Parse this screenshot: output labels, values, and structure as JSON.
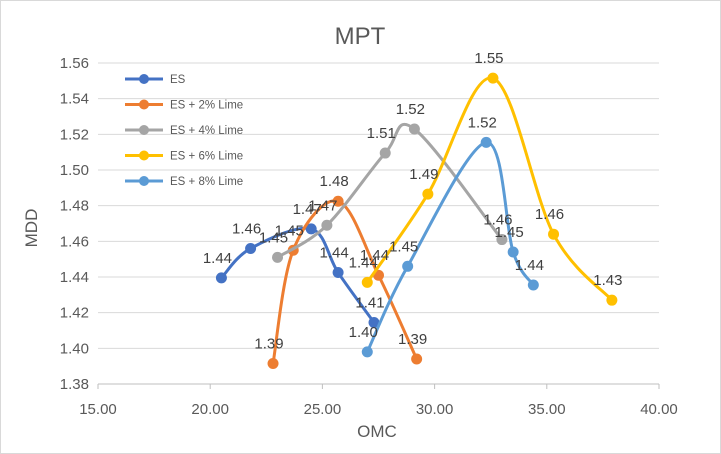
{
  "chart_data": {
    "type": "scatter",
    "title": "MPT",
    "xlabel": "OMC",
    "ylabel": "MDD",
    "xlim": [
      15.0,
      40.0
    ],
    "ylim": [
      1.38,
      1.56
    ],
    "xticks": [
      "15.00",
      "20.00",
      "25.00",
      "30.00",
      "35.00",
      "40.00"
    ],
    "yticks": [
      "1.38",
      "1.40",
      "1.42",
      "1.44",
      "1.46",
      "1.48",
      "1.50",
      "1.52",
      "1.54",
      "1.56"
    ],
    "grid": "horizontal",
    "legend_position": "top-left",
    "series": [
      {
        "name": "ES",
        "color": "#4472C4",
        "points": [
          {
            "x": 20.5,
            "y": 1.4395,
            "label": "1.44"
          },
          {
            "x": 21.8,
            "y": 1.456,
            "label": "1.46"
          },
          {
            "x": 24.5,
            "y": 1.467,
            "label": "1.47"
          },
          {
            "x": 25.7,
            "y": 1.4425,
            "label": "1.44"
          },
          {
            "x": 27.3,
            "y": 1.4145,
            "label": "1.41"
          }
        ]
      },
      {
        "name": "ES + 2% Lime",
        "color": "#ED7D31",
        "points": [
          {
            "x": 22.8,
            "y": 1.3915,
            "label": "1.39"
          },
          {
            "x": 23.7,
            "y": 1.455,
            "label": "1.45"
          },
          {
            "x": 25.7,
            "y": 1.4825,
            "label": "1.48"
          },
          {
            "x": 27.5,
            "y": 1.441,
            "label": "1.44"
          },
          {
            "x": 29.2,
            "y": 1.394,
            "label": "1.39"
          }
        ]
      },
      {
        "name": "ES + 4% Lime",
        "color": "#A5A5A5",
        "points": [
          {
            "x": 23.0,
            "y": 1.451,
            "label": "1.45"
          },
          {
            "x": 25.2,
            "y": 1.469,
            "label": "1.47"
          },
          {
            "x": 27.8,
            "y": 1.5095,
            "label": "1.51"
          },
          {
            "x": 29.1,
            "y": 1.523,
            "label": "1.52"
          },
          {
            "x": 33.0,
            "y": 1.461,
            "label": "1.46"
          }
        ]
      },
      {
        "name": "ES + 6% Lime",
        "color": "#FFC000",
        "points": [
          {
            "x": 27.0,
            "y": 1.437,
            "label": "1.44"
          },
          {
            "x": 29.7,
            "y": 1.4865,
            "label": "1.49"
          },
          {
            "x": 32.6,
            "y": 1.5515,
            "label": "1.55"
          },
          {
            "x": 35.3,
            "y": 1.464,
            "label": "1.46"
          },
          {
            "x": 37.9,
            "y": 1.427,
            "label": "1.43"
          }
        ]
      },
      {
        "name": "ES + 8% Lime",
        "color": "#5B9BD5",
        "points": [
          {
            "x": 27.0,
            "y": 1.398,
            "label": "1.40"
          },
          {
            "x": 28.8,
            "y": 1.446,
            "label": "1.45"
          },
          {
            "x": 32.3,
            "y": 1.5155,
            "label": "1.52"
          },
          {
            "x": 33.5,
            "y": 1.454,
            "label": "1.45"
          },
          {
            "x": 34.4,
            "y": 1.4355,
            "label": "1.44"
          }
        ]
      }
    ]
  }
}
